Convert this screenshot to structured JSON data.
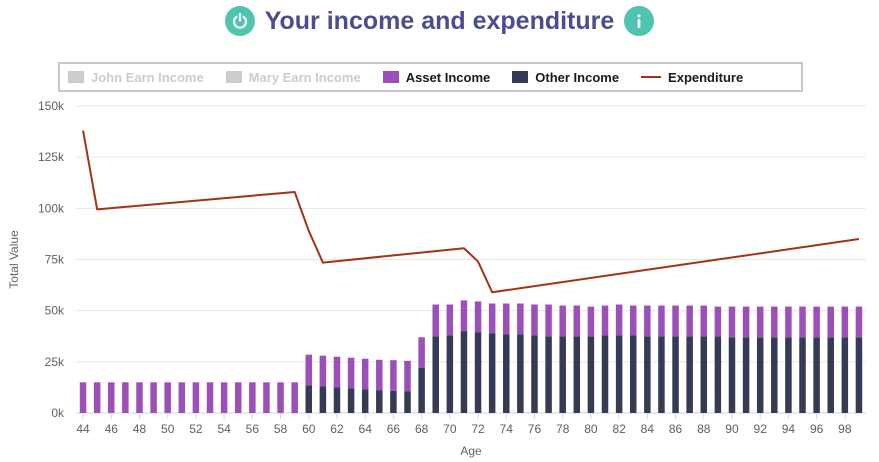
{
  "header": {
    "title": "Your income and expenditure",
    "power_icon": "power-icon",
    "info_icon": "info-icon"
  },
  "colors": {
    "title": "#4a4e8f",
    "icon_bg": "#4fc4b0",
    "asset_income": "#9c4fb8",
    "other_income": "#353a55",
    "expenditure": "#a33316",
    "hidden_series": "#cccccc",
    "grid": "#e6e6e6"
  },
  "legend": [
    {
      "label": "John Earn Income",
      "color": "#cccccc",
      "kind": "bar",
      "visible": false
    },
    {
      "label": "Mary Earn Income",
      "color": "#cccccc",
      "kind": "bar",
      "visible": false
    },
    {
      "label": "Asset Income",
      "color": "#9c4fb8",
      "kind": "bar",
      "visible": true
    },
    {
      "label": "Other Income",
      "color": "#353a55",
      "kind": "bar",
      "visible": true
    },
    {
      "label": "Expenditure",
      "color": "#a33316",
      "kind": "line",
      "visible": true
    }
  ],
  "chart_data": {
    "type": "bar",
    "stacked": true,
    "xlabel": "Age",
    "ylabel": "Total Value",
    "ylim": [
      0,
      150000
    ],
    "y_ticks": [
      0,
      25000,
      50000,
      75000,
      100000,
      125000,
      150000
    ],
    "y_tick_labels": [
      "0k",
      "25k",
      "50k",
      "75k",
      "100k",
      "125k",
      "150k"
    ],
    "x_tick_labels": [
      "44",
      "46",
      "48",
      "50",
      "52",
      "54",
      "56",
      "58",
      "60",
      "62",
      "64",
      "66",
      "68",
      "70",
      "72",
      "74",
      "76",
      "78",
      "80",
      "82",
      "84",
      "86",
      "88",
      "90",
      "92",
      "94",
      "96",
      "98"
    ],
    "categories": [
      44,
      45,
      46,
      47,
      48,
      49,
      50,
      51,
      52,
      53,
      54,
      55,
      56,
      57,
      58,
      59,
      60,
      61,
      62,
      63,
      64,
      65,
      66,
      67,
      68,
      69,
      70,
      71,
      72,
      73,
      74,
      75,
      76,
      77,
      78,
      79,
      80,
      81,
      82,
      83,
      84,
      85,
      86,
      87,
      88,
      89,
      90,
      91,
      92,
      93,
      94,
      95,
      96,
      97,
      98,
      99
    ],
    "series": [
      {
        "name": "Other Income",
        "type": "bar",
        "values": [
          0,
          0,
          0,
          0,
          0,
          0,
          0,
          0,
          0,
          0,
          0,
          0,
          0,
          0,
          0,
          0,
          13500,
          13000,
          12500,
          12000,
          11500,
          11000,
          10800,
          10500,
          22000,
          37500,
          38000,
          40000,
          39500,
          39000,
          38500,
          38500,
          38000,
          37500,
          37500,
          37500,
          37500,
          38000,
          38000,
          38000,
          37500,
          37500,
          37500,
          37500,
          37500,
          37500,
          37000,
          37000,
          37000,
          37000,
          37000,
          37000,
          37000,
          37000,
          37000,
          37000
        ]
      },
      {
        "name": "Asset Income",
        "type": "bar",
        "values": [
          15000,
          15000,
          15000,
          15000,
          15000,
          15000,
          15000,
          15000,
          15000,
          15000,
          15000,
          15000,
          15000,
          15000,
          15000,
          15000,
          15000,
          15000,
          15000,
          15000,
          15000,
          15000,
          15000,
          15000,
          15000,
          15500,
          15000,
          15000,
          15000,
          14500,
          15000,
          15000,
          15000,
          15500,
          15000,
          15000,
          14500,
          14500,
          15000,
          14500,
          15000,
          15000,
          15000,
          15000,
          15000,
          14500,
          15000,
          15000,
          15000,
          15000,
          15000,
          15000,
          15000,
          15000,
          15000,
          15000
        ]
      },
      {
        "name": "Expenditure",
        "type": "line",
        "x": [
          44,
          45,
          59,
          60,
          61,
          71,
          72,
          73,
          99
        ],
        "values": [
          138000,
          99500,
          108000,
          89000,
          73500,
          80500,
          74000,
          59000,
          85000
        ]
      }
    ]
  }
}
